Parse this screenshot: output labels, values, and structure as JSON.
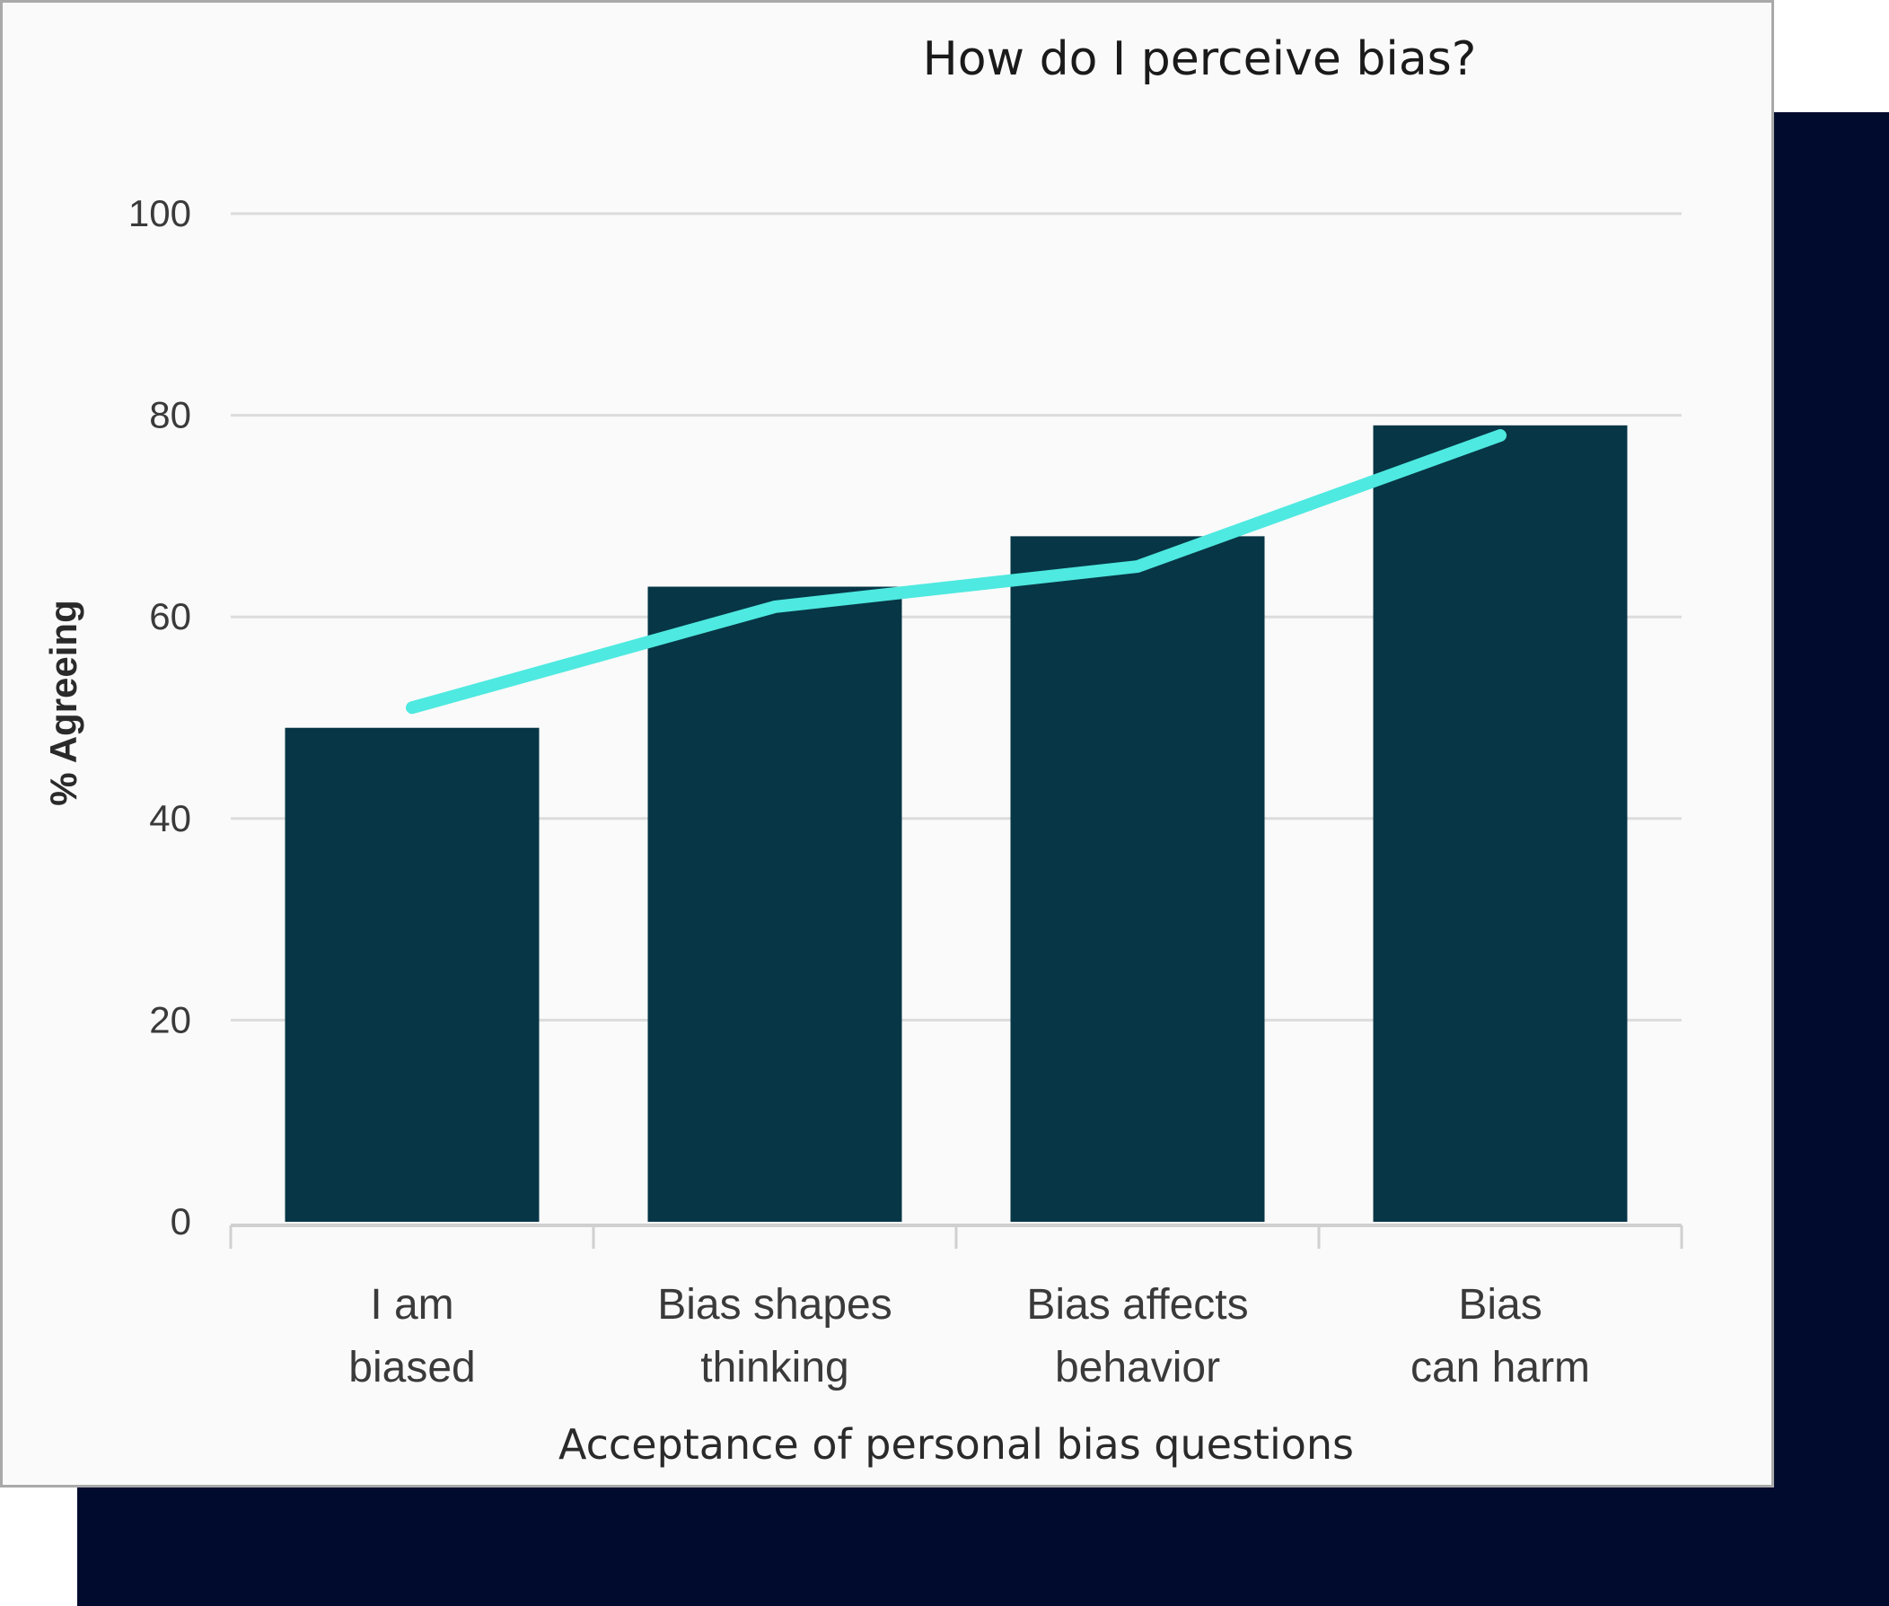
{
  "colors": {
    "bar": "#073646",
    "line": "#4ee9e0",
    "grid": "#dcdcdc",
    "axis": "#d0d0d0",
    "backdrop": "#010b2e"
  },
  "chart_data": {
    "type": "bar",
    "title": "How do I perceive bias?",
    "xlabel": "Acceptance of personal bias questions",
    "ylabel": "% Agreeing",
    "ylim": [
      0,
      100
    ],
    "yticks": [
      "0",
      "20",
      "40",
      "60",
      "80",
      "100"
    ],
    "grid": true,
    "categories": [
      [
        "I am",
        "biased"
      ],
      [
        "Bias shapes",
        "thinking"
      ],
      [
        "Bias affects",
        "behavior"
      ],
      [
        "Bias",
        "can harm"
      ]
    ],
    "series": [
      {
        "type": "bar",
        "values": [
          49,
          63,
          68,
          79
        ]
      },
      {
        "type": "line",
        "values": [
          51,
          61,
          65,
          78
        ]
      }
    ]
  }
}
